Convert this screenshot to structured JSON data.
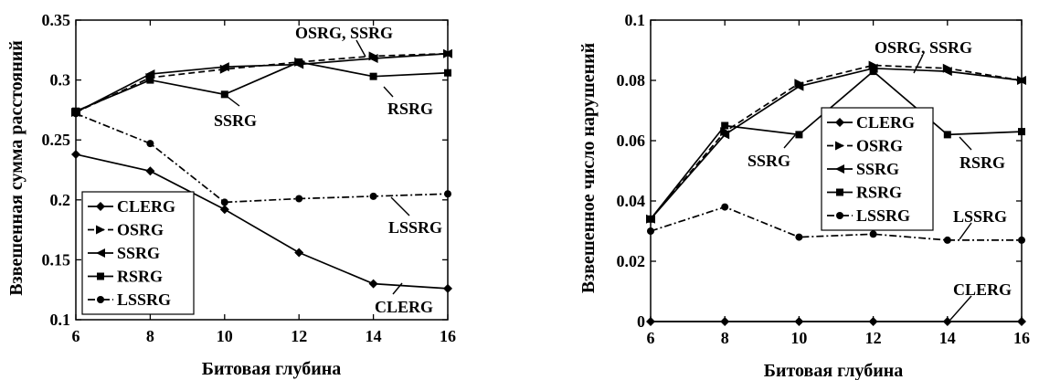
{
  "chart_data": [
    {
      "type": "line",
      "xlabel": "Битовая глубина",
      "ylabel": "Взвешенная сумма расстояний",
      "xlim": [
        6,
        16
      ],
      "ylim": [
        0.1,
        0.35
      ],
      "xticks": [
        6,
        8,
        10,
        12,
        14,
        16
      ],
      "yticks": [
        0.1,
        0.15,
        0.2,
        0.25,
        0.3,
        0.35
      ],
      "ytick_labels": [
        "0.1",
        "0.15",
        "0.2",
        "0.25",
        "0.3",
        "0.35"
      ],
      "x": [
        6,
        8,
        10,
        12,
        14,
        16
      ],
      "grid": false,
      "legend_position": "bottom-left",
      "series": [
        {
          "name": "CLERG",
          "marker": "diamond",
          "dash": "solid",
          "values": [
            0.238,
            0.224,
            0.192,
            0.156,
            0.13,
            0.126
          ]
        },
        {
          "name": "OSRG",
          "marker": "triangle-right",
          "dash": "dashed",
          "values": [
            0.273,
            0.302,
            0.309,
            0.315,
            0.32,
            0.322
          ]
        },
        {
          "name": "SSRG",
          "marker": "triangle-left",
          "dash": "solid",
          "values": [
            0.273,
            0.305,
            0.311,
            0.313,
            0.318,
            0.322
          ]
        },
        {
          "name": "RSRG",
          "marker": "square",
          "dash": "solid",
          "values": [
            0.274,
            0.3,
            0.288,
            0.315,
            0.303,
            0.306
          ]
        },
        {
          "name": "LSSRG",
          "marker": "circle",
          "dash": "dashdot",
          "values": [
            0.272,
            0.247,
            0.198,
            0.201,
            0.203,
            0.205
          ]
        }
      ],
      "annotations": [
        "OSRG, SSRG",
        "SSRG",
        "RSRG",
        "LSSRG",
        "CLERG"
      ]
    },
    {
      "type": "line",
      "xlabel": "Битовая глубина",
      "ylabel": "Взвешенное число нарушений",
      "xlim": [
        6,
        16
      ],
      "ylim": [
        0,
        0.1
      ],
      "xticks": [
        6,
        8,
        10,
        12,
        14,
        16
      ],
      "yticks": [
        0,
        0.02,
        0.04,
        0.06,
        0.08,
        0.1
      ],
      "ytick_labels": [
        "0",
        "0.02",
        "0.04",
        "0.06",
        "0.08",
        "0.1"
      ],
      "x": [
        6,
        8,
        10,
        12,
        14,
        16
      ],
      "grid": false,
      "legend_position": "center",
      "series": [
        {
          "name": "CLERG",
          "marker": "diamond",
          "dash": "solid",
          "values": [
            0,
            0,
            0,
            0,
            0,
            0
          ]
        },
        {
          "name": "OSRG",
          "marker": "triangle-right",
          "dash": "dashed",
          "values": [
            0.034,
            0.063,
            0.079,
            0.085,
            0.084,
            0.08
          ]
        },
        {
          "name": "SSRG",
          "marker": "triangle-left",
          "dash": "solid",
          "values": [
            0.034,
            0.062,
            0.078,
            0.084,
            0.083,
            0.08
          ]
        },
        {
          "name": "RSRG",
          "marker": "square",
          "dash": "solid",
          "values": [
            0.034,
            0.065,
            0.062,
            0.083,
            0.062,
            0.063
          ]
        },
        {
          "name": "LSSRG",
          "marker": "circle",
          "dash": "dashdot",
          "values": [
            0.03,
            0.038,
            0.028,
            0.029,
            0.027,
            0.027
          ]
        }
      ],
      "annotations": [
        "OSRG, SSRG",
        "SSRG",
        "RSRG",
        "LSSRG",
        "CLERG"
      ]
    }
  ]
}
